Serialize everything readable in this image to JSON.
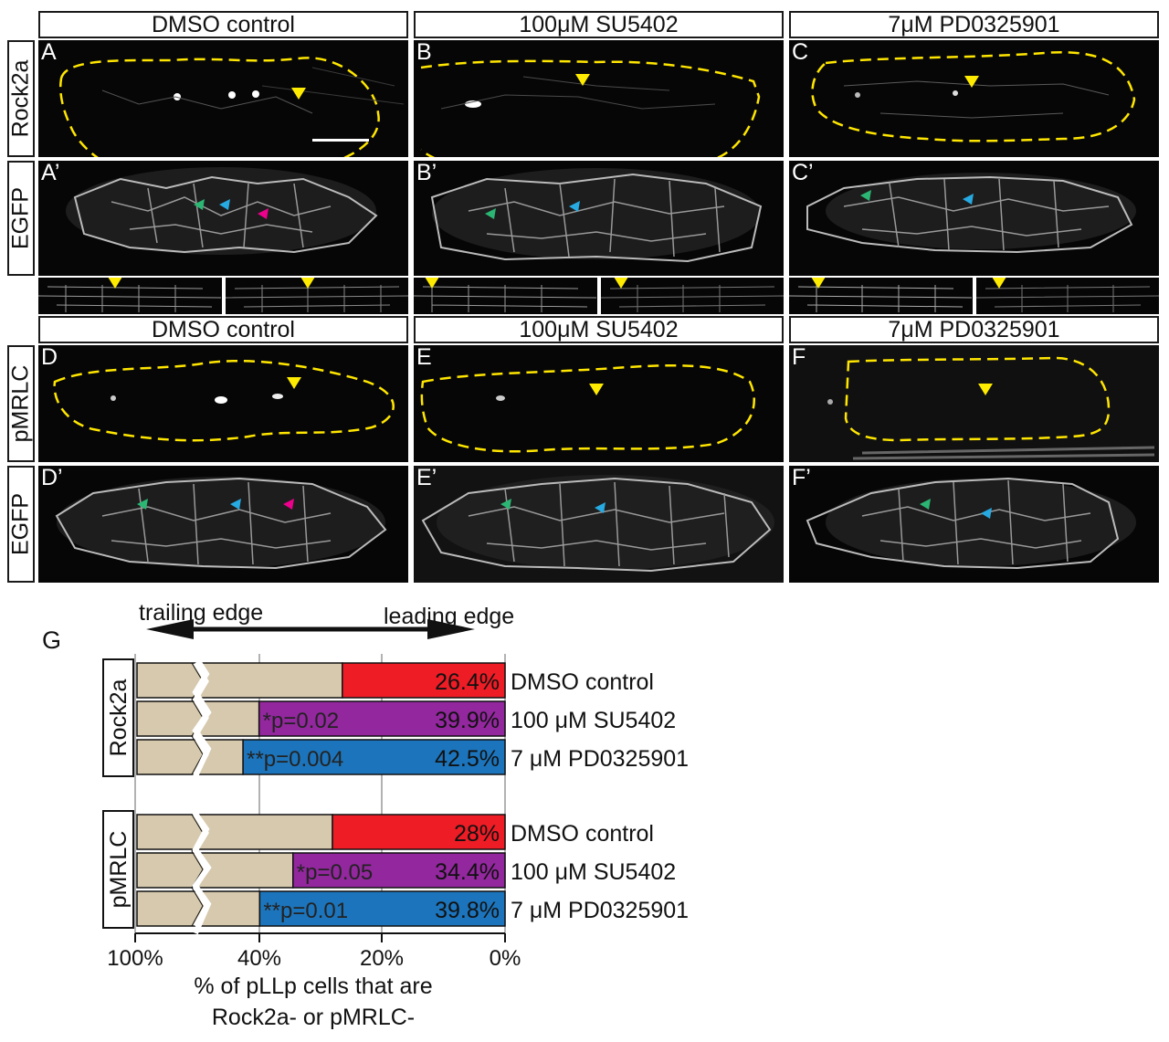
{
  "headers": {
    "row1": [
      "DMSO control",
      "100μM SU5402",
      "7μM PD0325901"
    ],
    "row2": [
      "DMSO control",
      "100μM SU5402",
      "7μM PD0325901"
    ]
  },
  "row_labels": {
    "rock2a": "Rock2a",
    "egfp1": "EGFP",
    "pmrlc": "pMRLC",
    "egfp2": "EGFP"
  },
  "panels": {
    "A": "A",
    "B": "B",
    "C": "C",
    "A2": "A’",
    "B2": "B’",
    "C2": "C’",
    "D": "D",
    "E": "E",
    "F": "F",
    "D2": "D’",
    "E2": "E’",
    "F2": "F’"
  },
  "arrowhead_colors": {
    "yellow": "#ffeb00",
    "green": "#2bb673",
    "blue": "#27aae1",
    "magenta": "#ec008c",
    "outline": "#ffe600"
  },
  "figure_g": {
    "letter": "G",
    "trailing": "trailing edge",
    "leading": "leading edge",
    "ticks": [
      "100%",
      "40%",
      "20%",
      "0%"
    ],
    "xlabel_line1": "% of pLLp cells that are",
    "xlabel_line2": "Rock2a- or pMRLC-",
    "group1": "Rock2a",
    "group2": "pMRLC"
  },
  "chart_data": {
    "type": "bar",
    "orientation": "horizontal",
    "xlabel": "% of pLLp cells that are Rock2a- or pMRLC-",
    "axis_reversed": true,
    "axis_break": true,
    "xticks": [
      "100%",
      "40%",
      "20%",
      "0%"
    ],
    "groups": [
      {
        "name": "Rock2a",
        "bars": [
          {
            "label": "DMSO control",
            "value": 26.4,
            "value_label": "26.4%",
            "p_label": "",
            "color": "#ee1c25"
          },
          {
            "label": "100 μM SU5402",
            "value": 39.9,
            "value_label": "39.9%",
            "p_label": "*p=0.02",
            "color": "#93279e"
          },
          {
            "label": "7 μM PD0325901",
            "value": 42.5,
            "value_label": "42.5%",
            "p_label": "**p=0.004",
            "color": "#1c75bc"
          }
        ]
      },
      {
        "name": "pMRLC",
        "bars": [
          {
            "label": "DMSO control",
            "value": 28,
            "value_label": "28%",
            "p_label": "",
            "color": "#ee1c25"
          },
          {
            "label": "100 μM SU5402",
            "value": 34.4,
            "value_label": "34.4%",
            "p_label": "*p=0.05",
            "color": "#93279e"
          },
          {
            "label": "7 μM PD0325901",
            "value": 39.8,
            "value_label": "39.8%",
            "p_label": "**p=0.01",
            "color": "#1c75bc"
          }
        ]
      }
    ],
    "remainder_color": "#d6c9ad"
  }
}
